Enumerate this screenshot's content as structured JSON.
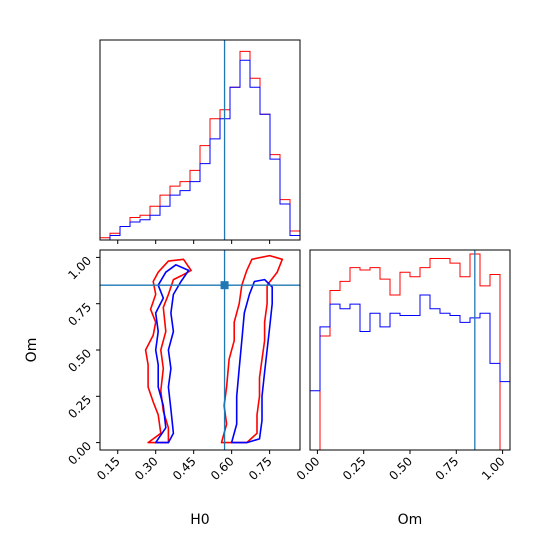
{
  "chart_data": {
    "type": "corner",
    "parameters": [
      "H0",
      "Om"
    ],
    "xlabel_left": "H0",
    "xlabel_right": "Om",
    "ylabel_bottom": "Om",
    "colors": {
      "red": "#ff0000",
      "blue": "#0000ff",
      "truth": "#1f77b4"
    },
    "truth": {
      "H0": 0.572,
      "Om": 0.85
    },
    "ranges": {
      "H0": [
        0.08,
        0.87
      ],
      "Om": [
        -0.04,
        1.04
      ]
    },
    "ticks": {
      "H0": [
        0.15,
        0.3,
        0.45,
        0.6,
        0.75
      ],
      "H0_labels": [
        "0.15",
        "0.30",
        "0.45",
        "0.60",
        "0.75"
      ],
      "Om": [
        0.0,
        0.25,
        0.5,
        0.75,
        1.0
      ],
      "Om_labels": [
        "0.00",
        "0.25",
        "0.50",
        "0.75",
        "1.00"
      ]
    },
    "hist_H0": {
      "edges": [
        0.08,
        0.1195,
        0.159,
        0.1985,
        0.238,
        0.2775,
        0.317,
        0.3565,
        0.396,
        0.4355,
        0.475,
        0.5145,
        0.554,
        0.5935,
        0.633,
        0.6725,
        0.712,
        0.7515,
        0.791,
        0.8305,
        0.87
      ],
      "series": [
        {
          "color": "red",
          "counts": [
            0.5,
            1.5,
            3,
            5,
            5.5,
            7.5,
            10,
            12,
            13,
            15.5,
            21,
            27,
            29,
            34,
            42,
            36,
            28,
            19,
            9,
            2
          ]
        },
        {
          "color": "blue",
          "counts": [
            0,
            1,
            3,
            4,
            4.5,
            5.5,
            7.5,
            10,
            11,
            13,
            17,
            22.5,
            27,
            34,
            40,
            34,
            28,
            18,
            8,
            1
          ]
        }
      ]
    },
    "hist_Om": {
      "edges": [
        -0.04,
        0.014,
        0.068,
        0.122,
        0.176,
        0.23,
        0.284,
        0.338,
        0.392,
        0.446,
        0.5,
        0.554,
        0.608,
        0.662,
        0.716,
        0.77,
        0.824,
        0.878,
        0.932,
        0.986,
        1.04
      ],
      "series": [
        {
          "color": "red",
          "counts": [
            0,
            25,
            35,
            37,
            40,
            39.5,
            40,
            37.5,
            34,
            39,
            38,
            40,
            42,
            42,
            41,
            38,
            43,
            36,
            38.5,
            0
          ]
        },
        {
          "color": "blue",
          "counts": [
            13,
            27,
            32,
            31,
            32,
            26,
            30,
            27,
            30,
            29.5,
            29.5,
            34,
            31,
            30,
            29.5,
            28,
            29,
            30,
            19,
            15
          ]
        }
      ]
    },
    "contours": [
      {
        "color": "red",
        "points": [
          [
            0.27,
            0.0
          ],
          [
            0.32,
            0.05
          ],
          [
            0.31,
            0.15
          ],
          [
            0.29,
            0.22
          ],
          [
            0.27,
            0.3
          ],
          [
            0.27,
            0.42
          ],
          [
            0.26,
            0.5
          ],
          [
            0.29,
            0.58
          ],
          [
            0.3,
            0.65
          ],
          [
            0.28,
            0.72
          ],
          [
            0.3,
            0.8
          ],
          [
            0.29,
            0.87
          ],
          [
            0.31,
            0.92
          ],
          [
            0.35,
            0.98
          ],
          [
            0.41,
            0.99
          ],
          [
            0.44,
            0.93
          ],
          [
            0.4,
            0.9
          ],
          [
            0.37,
            0.88
          ],
          [
            0.35,
            0.8
          ],
          [
            0.33,
            0.73
          ],
          [
            0.34,
            0.6
          ],
          [
            0.32,
            0.5
          ],
          [
            0.33,
            0.4
          ],
          [
            0.32,
            0.28
          ],
          [
            0.33,
            0.17
          ],
          [
            0.35,
            0.08
          ],
          [
            0.35,
            0.0
          ]
        ]
      },
      {
        "color": "red",
        "points": [
          [
            0.56,
            0.0
          ],
          [
            0.58,
            0.1
          ],
          [
            0.57,
            0.2
          ],
          [
            0.58,
            0.3
          ],
          [
            0.59,
            0.45
          ],
          [
            0.61,
            0.55
          ],
          [
            0.61,
            0.65
          ],
          [
            0.63,
            0.75
          ],
          [
            0.64,
            0.85
          ],
          [
            0.66,
            0.93
          ],
          [
            0.68,
            0.99
          ],
          [
            0.75,
            1.01
          ],
          [
            0.8,
            0.99
          ],
          [
            0.78,
            0.92
          ],
          [
            0.74,
            0.85
          ],
          [
            0.74,
            0.75
          ],
          [
            0.73,
            0.65
          ],
          [
            0.73,
            0.55
          ],
          [
            0.72,
            0.45
          ],
          [
            0.71,
            0.35
          ],
          [
            0.71,
            0.25
          ],
          [
            0.7,
            0.15
          ],
          [
            0.7,
            0.05
          ],
          [
            0.66,
            0.0
          ]
        ]
      },
      {
        "color": "blue",
        "points": [
          [
            0.3,
            0.0
          ],
          [
            0.34,
            0.08
          ],
          [
            0.33,
            0.2
          ],
          [
            0.31,
            0.3
          ],
          [
            0.31,
            0.42
          ],
          [
            0.3,
            0.5
          ],
          [
            0.31,
            0.6
          ],
          [
            0.3,
            0.7
          ],
          [
            0.33,
            0.78
          ],
          [
            0.31,
            0.85
          ],
          [
            0.34,
            0.92
          ],
          [
            0.38,
            0.96
          ],
          [
            0.43,
            0.93
          ],
          [
            0.4,
            0.87
          ],
          [
            0.37,
            0.8
          ],
          [
            0.36,
            0.7
          ],
          [
            0.37,
            0.6
          ],
          [
            0.35,
            0.5
          ],
          [
            0.36,
            0.4
          ],
          [
            0.35,
            0.3
          ],
          [
            0.36,
            0.18
          ],
          [
            0.37,
            0.05
          ],
          [
            0.35,
            0.0
          ]
        ]
      },
      {
        "color": "blue",
        "points": [
          [
            0.6,
            0.0
          ],
          [
            0.62,
            0.1
          ],
          [
            0.62,
            0.25
          ],
          [
            0.63,
            0.4
          ],
          [
            0.64,
            0.55
          ],
          [
            0.65,
            0.7
          ],
          [
            0.67,
            0.8
          ],
          [
            0.69,
            0.87
          ],
          [
            0.73,
            0.88
          ],
          [
            0.76,
            0.84
          ],
          [
            0.76,
            0.75
          ],
          [
            0.75,
            0.62
          ],
          [
            0.74,
            0.5
          ],
          [
            0.73,
            0.38
          ],
          [
            0.72,
            0.25
          ],
          [
            0.72,
            0.12
          ],
          [
            0.71,
            0.02
          ],
          [
            0.66,
            0.0
          ]
        ]
      }
    ]
  }
}
